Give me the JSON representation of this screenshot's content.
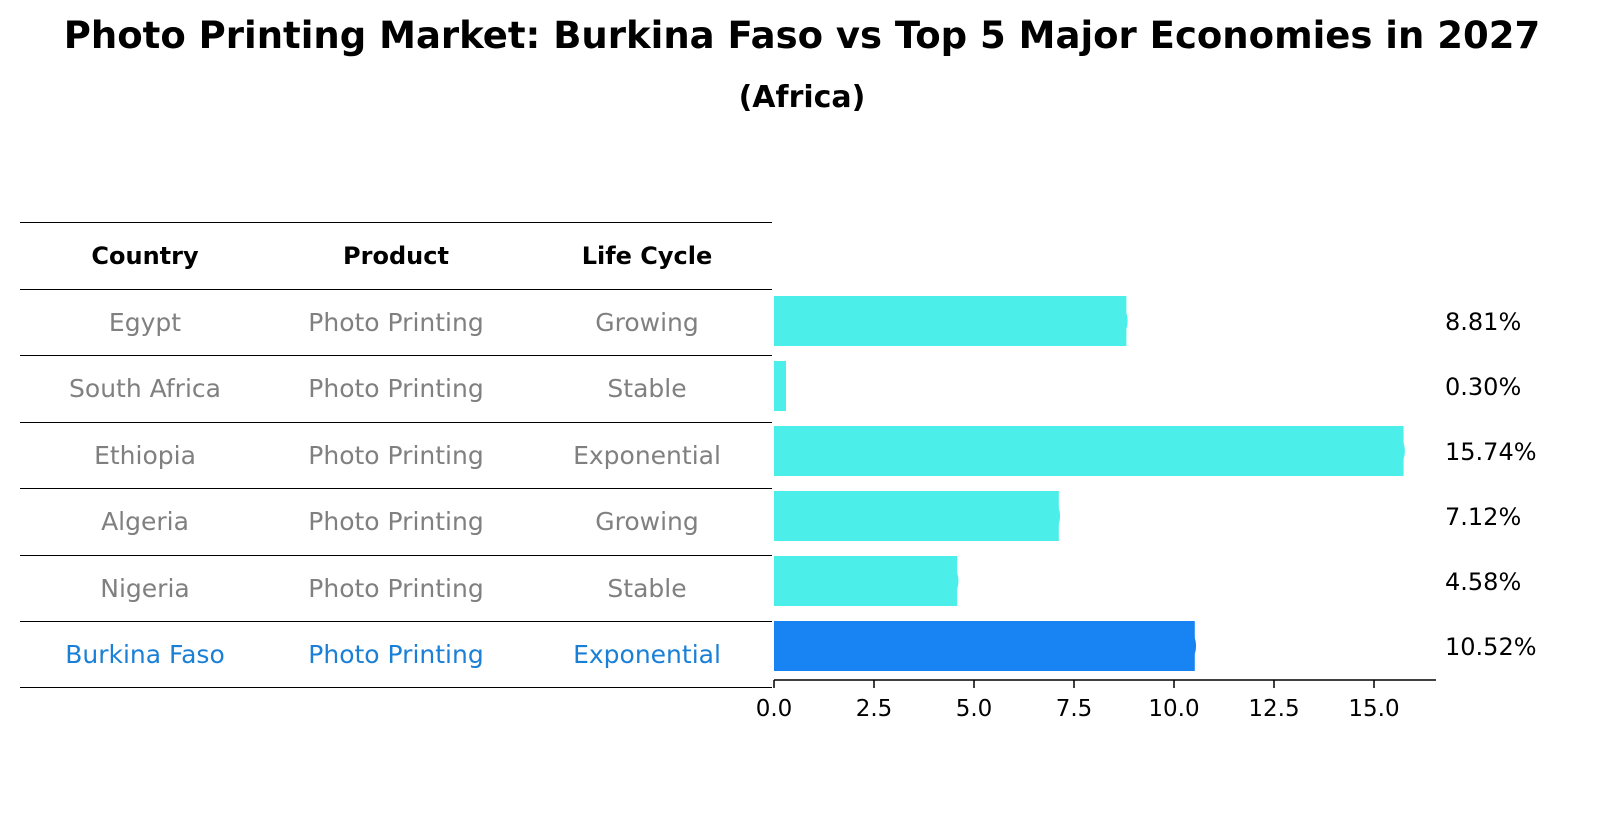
{
  "title": "Photo Printing Market: Burkina Faso vs Top 5 Major Economies in 2027",
  "subtitle": "(Africa)",
  "table": {
    "headers": [
      "Country",
      "Product",
      "Life Cycle"
    ],
    "rows": [
      [
        "Egypt",
        "Photo Printing",
        "Growing"
      ],
      [
        "South Africa",
        "Photo Printing",
        "Stable"
      ],
      [
        "Ethiopia",
        "Photo Printing",
        "Exponential"
      ],
      [
        "Algeria",
        "Photo Printing",
        "Growing"
      ],
      [
        "Nigeria",
        "Photo Printing",
        "Stable"
      ],
      [
        "Burkina Faso",
        "Photo Printing",
        "Exponential"
      ]
    ]
  },
  "colors": {
    "bar": "#4ceeea",
    "highlight": "#1884f4",
    "muted_text": "#808080",
    "highlight_text": "#1a7fd6"
  },
  "chart_data": {
    "type": "bar",
    "orientation": "horizontal",
    "categories": [
      "Egypt",
      "South Africa",
      "Ethiopia",
      "Algeria",
      "Nigeria",
      "Burkina Faso"
    ],
    "values": [
      8.81,
      0.3,
      15.74,
      7.12,
      4.58,
      10.52
    ],
    "value_labels": [
      "8.81%",
      "0.30%",
      "15.74%",
      "7.12%",
      "4.58%",
      "10.52%"
    ],
    "highlight": "Burkina Faso",
    "xlim": [
      0,
      16.5
    ],
    "xticks": [
      "0.0",
      "2.5",
      "5.0",
      "7.5",
      "10.0",
      "12.5",
      "15.0"
    ],
    "grid": false
  }
}
